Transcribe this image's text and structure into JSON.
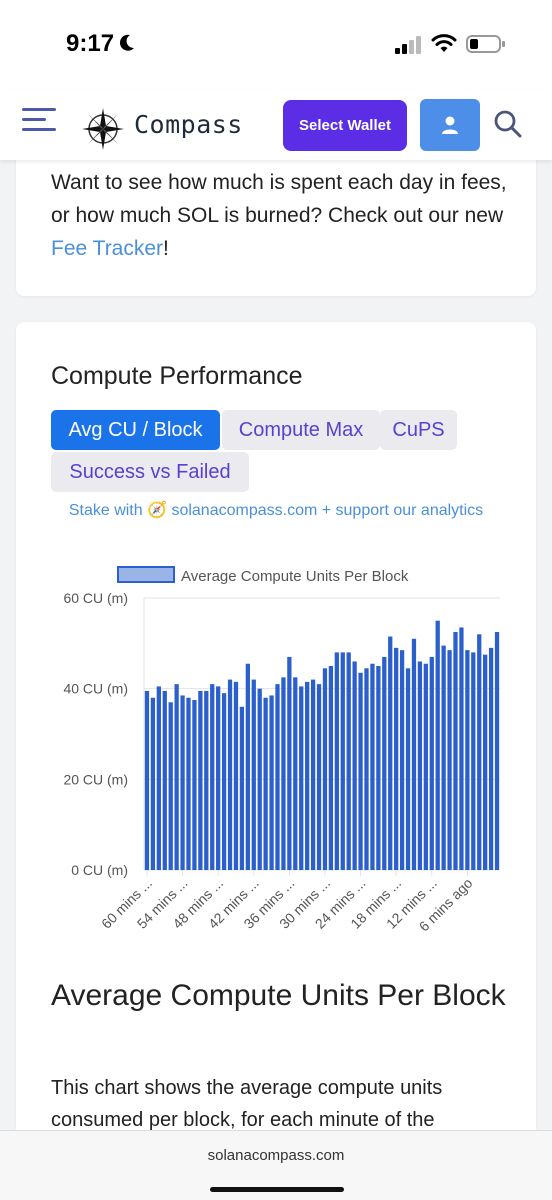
{
  "status": {
    "time": "9:17"
  },
  "header": {
    "logo_text": "Compass",
    "wallet_button": "Select Wallet",
    "icons": [
      "menu-icon",
      "compass-logo-icon",
      "user-icon",
      "search-icon"
    ]
  },
  "promo": {
    "text_before": "Want to see how much is spent each day in fees, or how much SOL is burned? Check out our new ",
    "link": "Fee Tracker",
    "text_after": "!"
  },
  "compute": {
    "title": "Compute Performance",
    "tabs": [
      "Avg CU / Block",
      "Compute Max",
      "CuPS",
      "Success vs Failed"
    ],
    "active_tab": "Avg CU / Block",
    "stake_text": "Stake with 🧭 solanacompass.com + support our analytics"
  },
  "chart_data": {
    "type": "bar",
    "legend": "Average Compute Units Per Block",
    "y_ticks": [
      "60 CU (m)",
      "40 CU (m)",
      "20 CU (m)",
      "0 CU (m)"
    ],
    "ylim": [
      0,
      60
    ],
    "x_tick_labels": [
      "60 mins ...",
      "54 mins ...",
      "48 mins ...",
      "42 mins ...",
      "36 mins ...",
      "30 mins ...",
      "24 mins ...",
      "18 mins ...",
      "12 mins ...",
      "6 mins ago"
    ],
    "values": [
      39.5,
      38,
      40.5,
      39.5,
      37,
      41,
      38.5,
      38,
      37.5,
      39.5,
      39.5,
      41,
      40.5,
      39,
      42,
      41.5,
      36,
      45.5,
      42,
      40,
      38,
      38.5,
      41,
      42.5,
      47,
      42.5,
      40.5,
      41.5,
      42,
      41,
      44.5,
      45,
      48,
      48,
      48,
      46,
      43.5,
      44.5,
      45.5,
      45,
      47,
      51.5,
      49,
      48.5,
      44.5,
      51,
      46,
      45.5,
      47,
      55,
      49.5,
      48.5,
      52.5,
      53.5,
      48.5,
      48,
      52,
      47.5,
      49,
      52.5
    ],
    "colors": {
      "bar": "#2b5fcc",
      "legend_fill": "#9bb4e8",
      "legend_border": "#2b5fcc",
      "grid": "#e3e3e3"
    }
  },
  "article": {
    "title": "Average Compute Units Per Block",
    "body": "This chart shows the average compute units consumed per block, for each minute of the"
  },
  "browser": {
    "url": "solanacompass.com"
  }
}
